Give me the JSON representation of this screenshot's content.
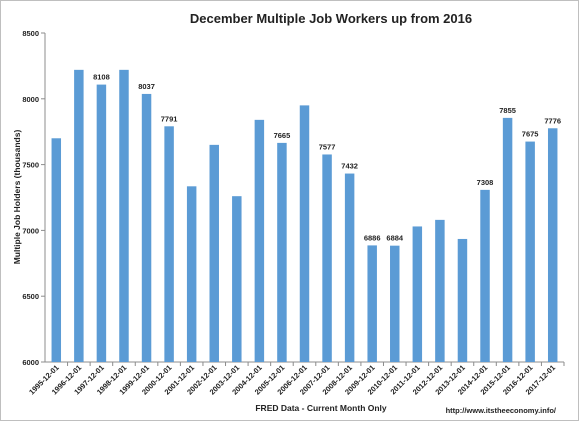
{
  "chart_data": {
    "type": "bar",
    "title": "December Multiple Job Workers up from 2016",
    "xlabel": "FRED Data - Current Month Only",
    "ylabel": "Multiple Job Holders (thousands)",
    "source_url": "http://www.itstheeconomy.info/",
    "ylim": [
      6000,
      8500
    ],
    "yticks": [
      6000,
      6500,
      7000,
      7500,
      8000,
      8500
    ],
    "grid": false,
    "bar_color": "#5b9bd5",
    "categories": [
      "1995-12-01",
      "1996-12-01",
      "1997-12-01",
      "1998-12-01",
      "1999-12-01",
      "2000-12-01",
      "2001-12-01",
      "2002-12-01",
      "2003-12-01",
      "2004-12-01",
      "2005-12-01",
      "2006-12-01",
      "2007-12-01",
      "2008-12-01",
      "2009-12-01",
      "2010-12-01",
      "2011-12-01",
      "2012-12-01",
      "2013-12-01",
      "2014-12-01",
      "2015-12-01",
      "2016-12-01",
      "2017-12-01"
    ],
    "values": [
      7700,
      8220,
      8108,
      8220,
      8037,
      7791,
      7335,
      7650,
      7260,
      7840,
      7665,
      7950,
      7577,
      7432,
      6886,
      6884,
      7030,
      7080,
      6935,
      7308,
      7855,
      7675,
      7776
    ],
    "data_labels": [
      null,
      null,
      "8108",
      null,
      "8037",
      "7791",
      null,
      null,
      null,
      null,
      "7665",
      null,
      "7577",
      "7432",
      "6886",
      "6884",
      null,
      null,
      null,
      "7308",
      "7855",
      "7675",
      "7776"
    ]
  }
}
